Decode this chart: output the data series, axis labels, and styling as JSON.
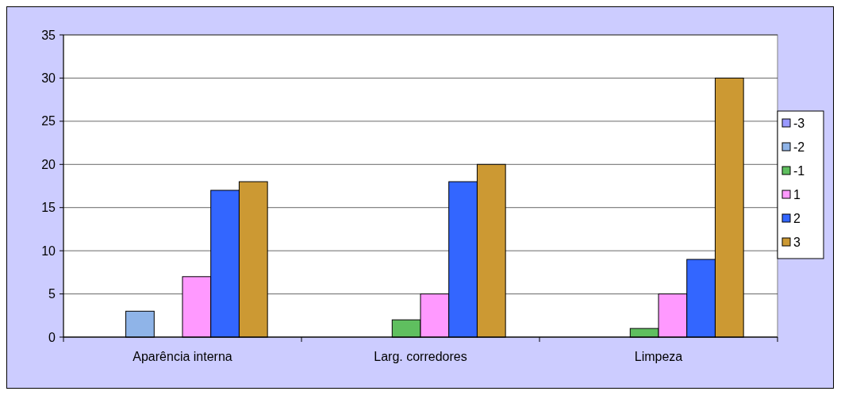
{
  "chart_data": {
    "type": "bar",
    "categories": [
      "Aparência interna",
      "Larg. corredores",
      "Limpeza"
    ],
    "series": [
      {
        "name": "-3",
        "color": "#9999ff",
        "values": [
          0,
          0,
          0
        ]
      },
      {
        "name": "-2",
        "color": "#8fb4e8",
        "values": [
          3,
          0,
          0
        ]
      },
      {
        "name": "-1",
        "color": "#5fbf5f",
        "values": [
          0,
          2,
          1
        ]
      },
      {
        "name": "1",
        "color": "#ff99ff",
        "values": [
          7,
          5,
          5
        ]
      },
      {
        "name": "2",
        "color": "#3366ff",
        "values": [
          17,
          18,
          9
        ]
      },
      {
        "name": "3",
        "color": "#cc9933",
        "values": [
          18,
          20,
          30
        ]
      }
    ],
    "ylim": [
      0,
      35
    ],
    "yticks": [
      0,
      5,
      10,
      15,
      20,
      25,
      30,
      35
    ],
    "grid": "y",
    "legend": "right"
  }
}
